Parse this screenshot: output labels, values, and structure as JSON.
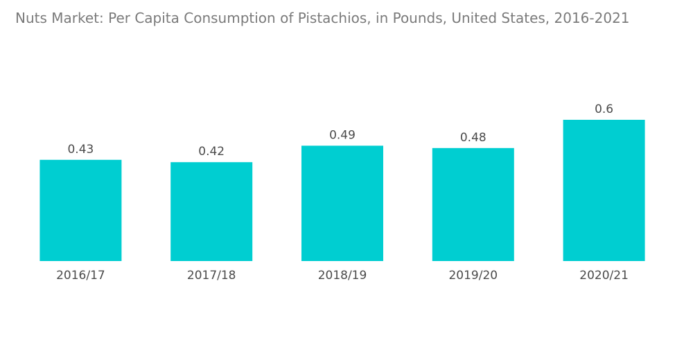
{
  "chart_data": {
    "type": "bar",
    "title": "Nuts Market: Per Capita Consumption of Pistachios, in Pounds, United States, 2016-2021",
    "categories": [
      "2016/17",
      "2017/18",
      "2018/19",
      "2019/20",
      "2020/21"
    ],
    "values": [
      0.43,
      0.42,
      0.49,
      0.48,
      0.6
    ],
    "value_labels": [
      "0.43",
      "0.42",
      "0.49",
      "0.48",
      "0.6"
    ],
    "xlabel": "",
    "ylabel": "",
    "ylim": [
      0,
      0.6
    ],
    "grid": false,
    "legend": "none",
    "bar_color": "#00ced1"
  }
}
